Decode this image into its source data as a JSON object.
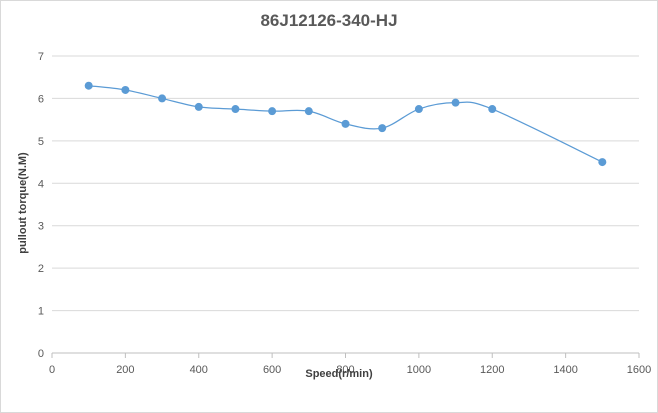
{
  "chart_data": {
    "type": "line",
    "title": "86J12126-340-HJ",
    "xlabel": "Speed(r/min)",
    "ylabel": "pullout torque(N.M)",
    "xlim": [
      0,
      1600
    ],
    "ylim": [
      0,
      7
    ],
    "xticks": [
      0,
      200,
      400,
      600,
      800,
      1000,
      1200,
      1400,
      1600
    ],
    "yticks": [
      0,
      1,
      2,
      3,
      4,
      5,
      6,
      7
    ],
    "grid": "horizontal",
    "smooth": true,
    "series": [
      {
        "color": "#5b9bd5",
        "x": [
          100,
          200,
          300,
          400,
          500,
          600,
          700,
          800,
          900,
          1000,
          1100,
          1200,
          1500
        ],
        "y": [
          6.3,
          6.2,
          6.0,
          5.8,
          5.75,
          5.7,
          5.7,
          5.4,
          5.3,
          5.75,
          5.9,
          5.75,
          4.5
        ]
      }
    ],
    "colors": {
      "grid": "#d9d9d9",
      "axis": "#bfbfbf",
      "text": "#595959"
    }
  }
}
